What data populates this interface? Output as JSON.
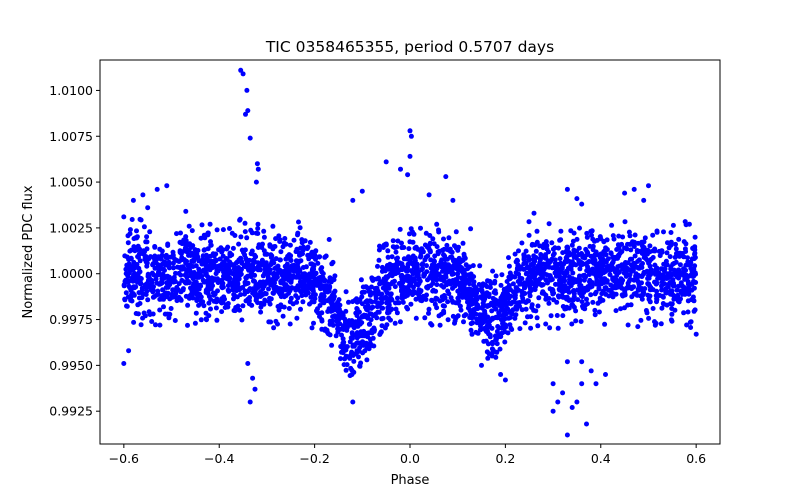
{
  "chart_data": {
    "type": "scatter",
    "title": "TIC 0358465355, period 0.5707 days",
    "xlabel": "Phase",
    "ylabel": "Normalized PDC flux",
    "xlim": [
      -0.65,
      0.65
    ],
    "ylim": [
      0.99071,
      1.01166
    ],
    "xticks": [
      -0.6,
      -0.4,
      -0.2,
      0.0,
      0.2,
      0.4,
      0.6
    ],
    "xtick_labels": [
      "−0.6",
      "−0.4",
      "−0.2",
      "0.0",
      "0.2",
      "0.4",
      "0.6"
    ],
    "yticks": [
      0.9925,
      0.995,
      0.9975,
      1.0,
      1.0025,
      1.005,
      1.0075,
      1.01
    ],
    "ytick_labels": [
      "0.9925",
      "0.9950",
      "0.9975",
      "1.0000",
      "1.0025",
      "1.0050",
      "1.0075",
      "1.0100"
    ],
    "grid": false,
    "marker_color": "#0000ff",
    "series": [
      {
        "name": "PDC flux",
        "phase_range": [
          -0.6,
          0.6
        ],
        "baseline": 1.0,
        "scatter_sigma": 0.0011,
        "band_limits": [
          0.997,
          1.003
        ],
        "primary_dip": {
          "center": -0.12,
          "depth": 0.0035,
          "width": 0.055
        },
        "secondary_dip": {
          "center": 0.17,
          "depth": 0.0025,
          "width": 0.045
        },
        "band_points": 3200,
        "outliers": [
          [
            -0.355,
            1.0111
          ],
          [
            -0.35,
            1.0109
          ],
          [
            -0.342,
            1.01
          ],
          [
            -0.345,
            1.0087
          ],
          [
            -0.34,
            1.0089
          ],
          [
            -0.335,
            1.0074
          ],
          [
            -0.32,
            1.006
          ],
          [
            -0.318,
            1.0057
          ],
          [
            -0.322,
            1.005
          ],
          [
            -0.6,
            1.0031
          ],
          [
            -0.58,
            1.004
          ],
          [
            -0.56,
            1.0043
          ],
          [
            -0.53,
            1.0046
          ],
          [
            -0.51,
            1.0048
          ],
          [
            -0.55,
            1.0036
          ],
          [
            -0.47,
            1.0034
          ],
          [
            -0.1,
            1.0045
          ],
          [
            -0.12,
            1.004
          ],
          [
            -0.05,
            1.0061
          ],
          [
            -0.02,
            1.0057
          ],
          [
            0.0,
            1.0078
          ],
          [
            0.003,
            1.0075
          ],
          [
            0.0,
            1.0064
          ],
          [
            -0.005,
            1.0054
          ],
          [
            0.075,
            1.0053
          ],
          [
            0.04,
            1.0043
          ],
          [
            0.09,
            1.004
          ],
          [
            0.26,
            1.0033
          ],
          [
            0.33,
            1.0046
          ],
          [
            0.35,
            1.0041
          ],
          [
            0.36,
            1.0038
          ],
          [
            0.45,
            1.0044
          ],
          [
            0.47,
            1.0046
          ],
          [
            0.5,
            1.0048
          ],
          [
            0.49,
            1.004
          ],
          [
            -0.6,
            0.9951
          ],
          [
            -0.59,
            0.9958
          ],
          [
            -0.34,
            0.9951
          ],
          [
            -0.33,
            0.9943
          ],
          [
            -0.325,
            0.9937
          ],
          [
            -0.335,
            0.993
          ],
          [
            -0.12,
            0.993
          ],
          [
            0.3,
            0.994
          ],
          [
            0.31,
            0.993
          ],
          [
            0.3,
            0.9925
          ],
          [
            0.32,
            0.9935
          ],
          [
            0.33,
            0.9912
          ],
          [
            0.34,
            0.9927
          ],
          [
            0.35,
            0.993
          ],
          [
            0.36,
            0.994
          ],
          [
            0.37,
            0.9918
          ],
          [
            0.33,
            0.9952
          ],
          [
            0.36,
            0.9952
          ],
          [
            0.38,
            0.9947
          ],
          [
            0.39,
            0.994
          ],
          [
            0.41,
            0.9945
          ],
          [
            0.6,
            0.9967
          ],
          [
            0.58,
            0.9972
          ],
          [
            0.15,
            0.995
          ],
          [
            0.19,
            0.9945
          ],
          [
            0.2,
            0.9942
          ]
        ]
      }
    ]
  }
}
